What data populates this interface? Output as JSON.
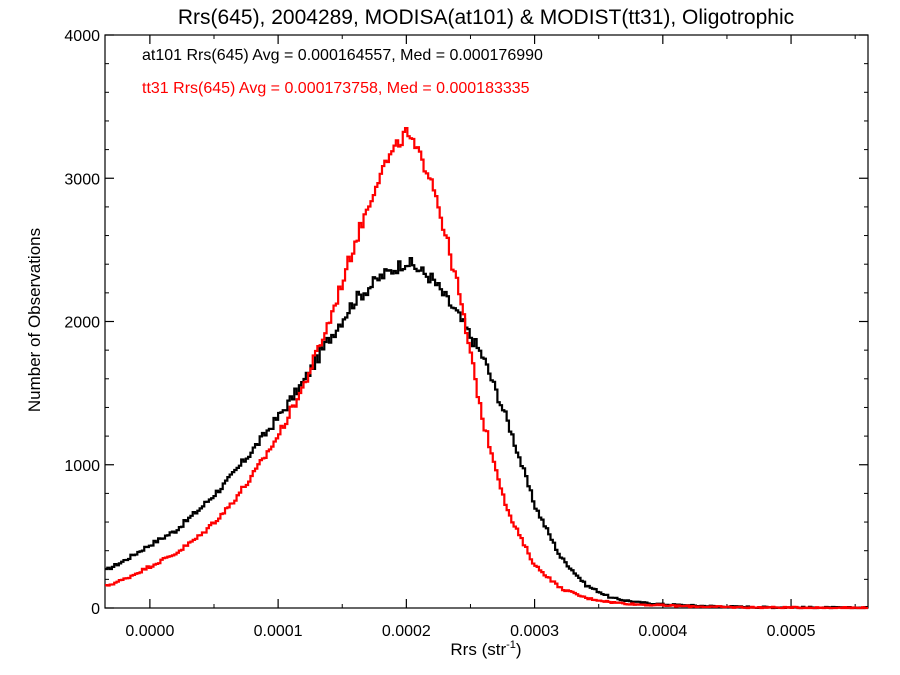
{
  "chart_data": {
    "type": "line",
    "title": "Rrs(645), 2004289, MODISA(at101) & MODIST(tt31), Oligotrophic",
    "xlabel_main": "Rrs (str",
    "xlabel_sup": "-1",
    "xlabel_tail": ")",
    "ylabel": "Number of Observations",
    "xlim": [
      -3.5e-05,
      0.00056
    ],
    "ylim": [
      0,
      4000
    ],
    "xticks": [
      0.0,
      0.0001,
      0.0002,
      0.0003,
      0.0004,
      0.0005
    ],
    "xtick_labels": [
      "0.0000",
      "0.0001",
      "0.0002",
      "0.0003",
      "0.0004",
      "0.0005"
    ],
    "yticks": [
      0,
      1000,
      2000,
      3000,
      4000
    ],
    "ytick_labels": [
      "0",
      "1000",
      "2000",
      "3000",
      "4000"
    ],
    "grid": false,
    "step": true,
    "annotations": [
      {
        "text": "at101 Rrs(645) Avg = 0.000164557, Med = 0.000176990",
        "color": "#000000"
      },
      {
        "text": "tt31 Rrs(645) Avg = 0.000173758, Med = 0.000183335",
        "color": "#ff0000"
      }
    ],
    "series": [
      {
        "color": "#000000",
        "x": [
          -3.5e-05,
          -2e-05,
          0.0,
          2e-05,
          4e-05,
          6e-05,
          8e-05,
          0.0001,
          0.00012,
          0.00014,
          0.00016,
          0.00018,
          0.0002,
          0.00022,
          0.00024,
          0.00026,
          0.00028,
          0.0003,
          0.00032,
          0.00034,
          0.00036,
          0.00038,
          0.0004,
          0.00042,
          0.00044,
          0.00046,
          0.00048,
          0.0005,
          0.00052,
          0.00054,
          0.00056
        ],
        "y": [
          260,
          330,
          440,
          540,
          700,
          880,
          1100,
          1330,
          1580,
          1880,
          2150,
          2310,
          2420,
          2300,
          2050,
          1750,
          1280,
          720,
          360,
          160,
          70,
          40,
          25,
          18,
          12,
          8,
          5,
          4,
          3,
          2,
          2
        ]
      },
      {
        "color": "#ff0000",
        "x": [
          -3.5e-05,
          -2e-05,
          0.0,
          2e-05,
          4e-05,
          6e-05,
          8e-05,
          0.0001,
          0.00012,
          0.00014,
          0.00016,
          0.00018,
          0.0002,
          0.00022,
          0.00024,
          0.00026,
          0.00028,
          0.0003,
          0.00032,
          0.00034,
          0.00036,
          0.00038,
          0.0004,
          0.00042,
          0.00044,
          0.00046,
          0.00048,
          0.0005,
          0.00052,
          0.00054,
          0.00056
        ],
        "y": [
          150,
          200,
          290,
          380,
          510,
          690,
          920,
          1200,
          1550,
          2000,
          2550,
          3050,
          3320,
          3000,
          2250,
          1300,
          650,
          300,
          140,
          70,
          40,
          25,
          18,
          12,
          8,
          5,
          4,
          3,
          2,
          2,
          1
        ]
      }
    ]
  }
}
